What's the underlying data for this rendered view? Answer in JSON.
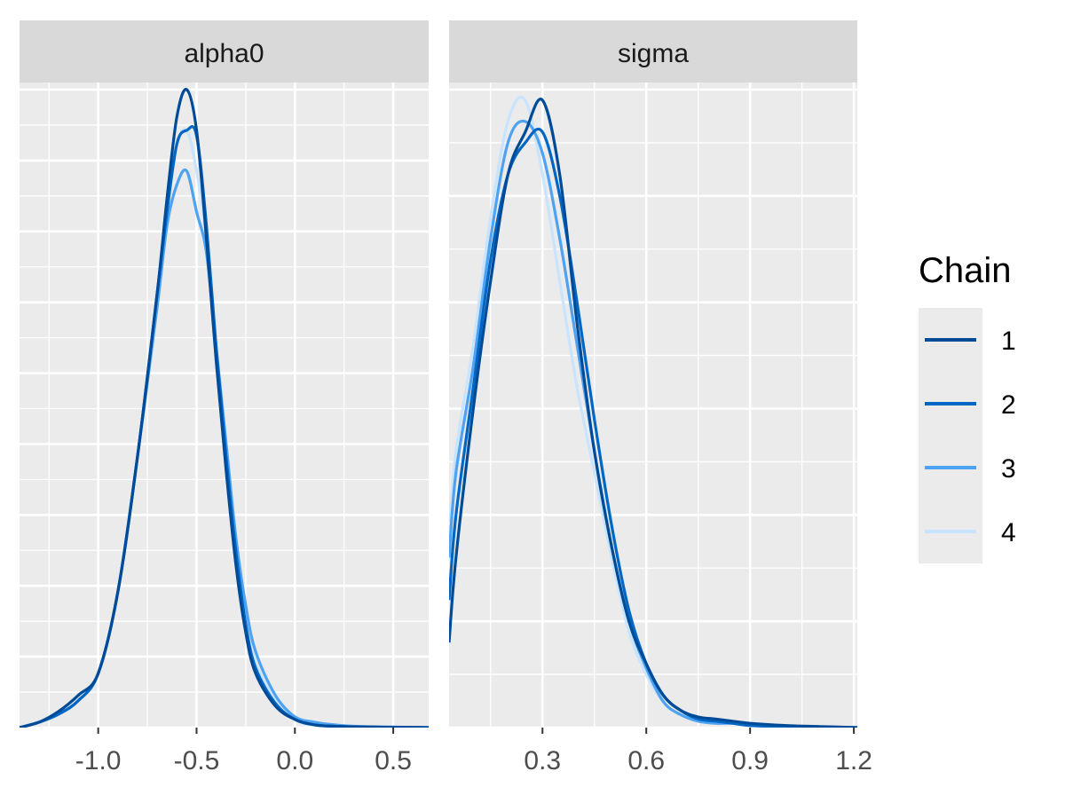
{
  "chart_data": {
    "type": "line",
    "title": "",
    "legend": {
      "title": "Chain",
      "entries": [
        "1",
        "2",
        "3",
        "4"
      ],
      "placement": "right"
    },
    "colors": [
      "#004b97",
      "#0066c4",
      "#4da2f1",
      "#c9e4ff"
    ],
    "panel_background": "#ebebeb",
    "strip_background": "#d9d9d9",
    "grid": true,
    "facets": [
      {
        "name": "alpha0",
        "xlim": [
          -1.4,
          0.68
        ],
        "ylim": [
          0,
          2.35
        ],
        "ticks": [
          -1.0,
          -0.5,
          0.0,
          0.5
        ],
        "tick_labels": [
          "-1.0",
          "-0.5",
          "0.0",
          "0.5"
        ],
        "series": [
          {
            "name": "1",
            "x": [
              -1.4,
              -1.3,
              -1.2,
              -1.1,
              -1.0,
              -0.9,
              -0.8,
              -0.7,
              -0.65,
              -0.6,
              -0.55,
              -0.5,
              -0.45,
              -0.4,
              -0.35,
              -0.3,
              -0.25,
              -0.2,
              -0.1,
              0.0,
              0.1,
              0.2,
              0.3,
              0.4,
              0.5,
              0.6,
              0.68
            ],
            "y": [
              0.0,
              0.02,
              0.06,
              0.12,
              0.2,
              0.5,
              1.0,
              1.6,
              1.95,
              2.25,
              2.35,
              2.2,
              1.8,
              1.35,
              0.95,
              0.6,
              0.35,
              0.2,
              0.08,
              0.03,
              0.01,
              0.005,
              0.003,
              0.002,
              0.001,
              0.001,
              0.0
            ]
          },
          {
            "name": "2",
            "x": [
              -1.4,
              -1.3,
              -1.2,
              -1.1,
              -1.0,
              -0.9,
              -0.8,
              -0.7,
              -0.65,
              -0.6,
              -0.55,
              -0.5,
              -0.45,
              -0.4,
              -0.35,
              -0.3,
              -0.25,
              -0.2,
              -0.1,
              0.0,
              0.1,
              0.2,
              0.3,
              0.4,
              0.5,
              0.6,
              0.68
            ],
            "y": [
              0.0,
              0.02,
              0.05,
              0.1,
              0.2,
              0.5,
              1.0,
              1.6,
              1.9,
              2.15,
              2.2,
              2.18,
              1.85,
              1.4,
              1.0,
              0.65,
              0.38,
              0.22,
              0.09,
              0.03,
              0.01,
              0.005,
              0.003,
              0.002,
              0.001,
              0.001,
              0.0
            ]
          },
          {
            "name": "3",
            "x": [
              -1.4,
              -1.3,
              -1.2,
              -1.1,
              -1.0,
              -0.9,
              -0.8,
              -0.7,
              -0.65,
              -0.6,
              -0.55,
              -0.5,
              -0.45,
              -0.4,
              -0.35,
              -0.3,
              -0.25,
              -0.2,
              -0.1,
              0.0,
              0.1,
              0.2,
              0.3,
              0.4,
              0.5,
              0.6,
              0.68
            ],
            "y": [
              0.0,
              0.02,
              0.05,
              0.1,
              0.2,
              0.5,
              1.0,
              1.55,
              1.85,
              2.0,
              2.05,
              1.9,
              1.75,
              1.4,
              1.05,
              0.7,
              0.45,
              0.28,
              0.12,
              0.04,
              0.02,
              0.01,
              0.005,
              0.003,
              0.002,
              0.001,
              0.0
            ]
          },
          {
            "name": "4",
            "x": [
              -1.4,
              -1.3,
              -1.2,
              -1.1,
              -1.0,
              -0.9,
              -0.8,
              -0.7,
              -0.65,
              -0.6,
              -0.55,
              -0.5,
              -0.45,
              -0.4,
              -0.35,
              -0.3,
              -0.25,
              -0.2,
              -0.1,
              0.0,
              0.1,
              0.2,
              0.3,
              0.4,
              0.5,
              0.6,
              0.68
            ],
            "y": [
              0.0,
              0.02,
              0.05,
              0.1,
              0.2,
              0.5,
              1.0,
              1.6,
              1.95,
              2.15,
              2.2,
              2.05,
              1.8,
              1.35,
              1.0,
              0.65,
              0.4,
              0.24,
              0.1,
              0.03,
              0.01,
              0.005,
              0.003,
              0.002,
              0.001,
              0.001,
              0.0
            ]
          }
        ]
      },
      {
        "name": "sigma",
        "xlim": [
          0.03,
          1.21
        ],
        "ylim": [
          0,
          3.0
        ],
        "ticks": [
          0.3,
          0.6,
          0.9,
          1.2
        ],
        "tick_labels": [
          "0.3",
          "0.6",
          "0.9",
          "1.2"
        ],
        "series": [
          {
            "name": "1",
            "x": [
              0.03,
              0.05,
              0.1,
              0.15,
              0.2,
              0.25,
              0.3,
              0.35,
              0.4,
              0.45,
              0.5,
              0.55,
              0.6,
              0.65,
              0.7,
              0.75,
              0.8,
              0.85,
              0.9,
              1.0,
              1.1,
              1.21
            ],
            "y": [
              0.4,
              0.8,
              1.5,
              2.1,
              2.6,
              2.8,
              2.95,
              2.6,
              1.9,
              1.3,
              0.85,
              0.5,
              0.3,
              0.15,
              0.08,
              0.05,
              0.04,
              0.03,
              0.02,
              0.01,
              0.005,
              0.0
            ]
          },
          {
            "name": "2",
            "x": [
              0.03,
              0.05,
              0.1,
              0.15,
              0.2,
              0.25,
              0.3,
              0.35,
              0.4,
              0.45,
              0.5,
              0.55,
              0.6,
              0.65,
              0.7,
              0.75,
              0.8,
              0.85,
              0.9,
              1.0,
              1.1,
              1.21
            ],
            "y": [
              0.6,
              1.0,
              1.6,
              2.2,
              2.6,
              2.75,
              2.8,
              2.5,
              2.0,
              1.45,
              0.95,
              0.55,
              0.3,
              0.15,
              0.08,
              0.04,
              0.03,
              0.02,
              0.01,
              0.005,
              0.002,
              0.0
            ]
          },
          {
            "name": "3",
            "x": [
              0.03,
              0.05,
              0.1,
              0.15,
              0.2,
              0.25,
              0.3,
              0.35,
              0.4,
              0.45,
              0.5,
              0.55,
              0.6,
              0.65,
              0.7,
              0.75,
              0.8,
              0.85,
              0.9,
              1.0,
              1.1,
              1.21
            ],
            "y": [
              0.8,
              1.2,
              1.7,
              2.3,
              2.75,
              2.85,
              2.7,
              2.3,
              1.8,
              1.3,
              0.85,
              0.5,
              0.28,
              0.12,
              0.06,
              0.03,
              0.02,
              0.02,
              0.01,
              0.005,
              0.002,
              0.0
            ]
          },
          {
            "name": "4",
            "x": [
              0.03,
              0.05,
              0.1,
              0.15,
              0.2,
              0.25,
              0.3,
              0.35,
              0.4,
              0.45,
              0.5,
              0.55,
              0.6,
              0.65,
              0.7,
              0.75,
              0.8,
              0.85,
              0.9,
              1.0,
              1.1,
              1.21
            ],
            "y": [
              0.9,
              1.3,
              1.8,
              2.4,
              2.85,
              2.95,
              2.6,
              2.1,
              1.6,
              1.2,
              0.8,
              0.45,
              0.25,
              0.12,
              0.06,
              0.04,
              0.03,
              0.02,
              0.01,
              0.005,
              0.002,
              0.0
            ]
          }
        ]
      }
    ]
  }
}
